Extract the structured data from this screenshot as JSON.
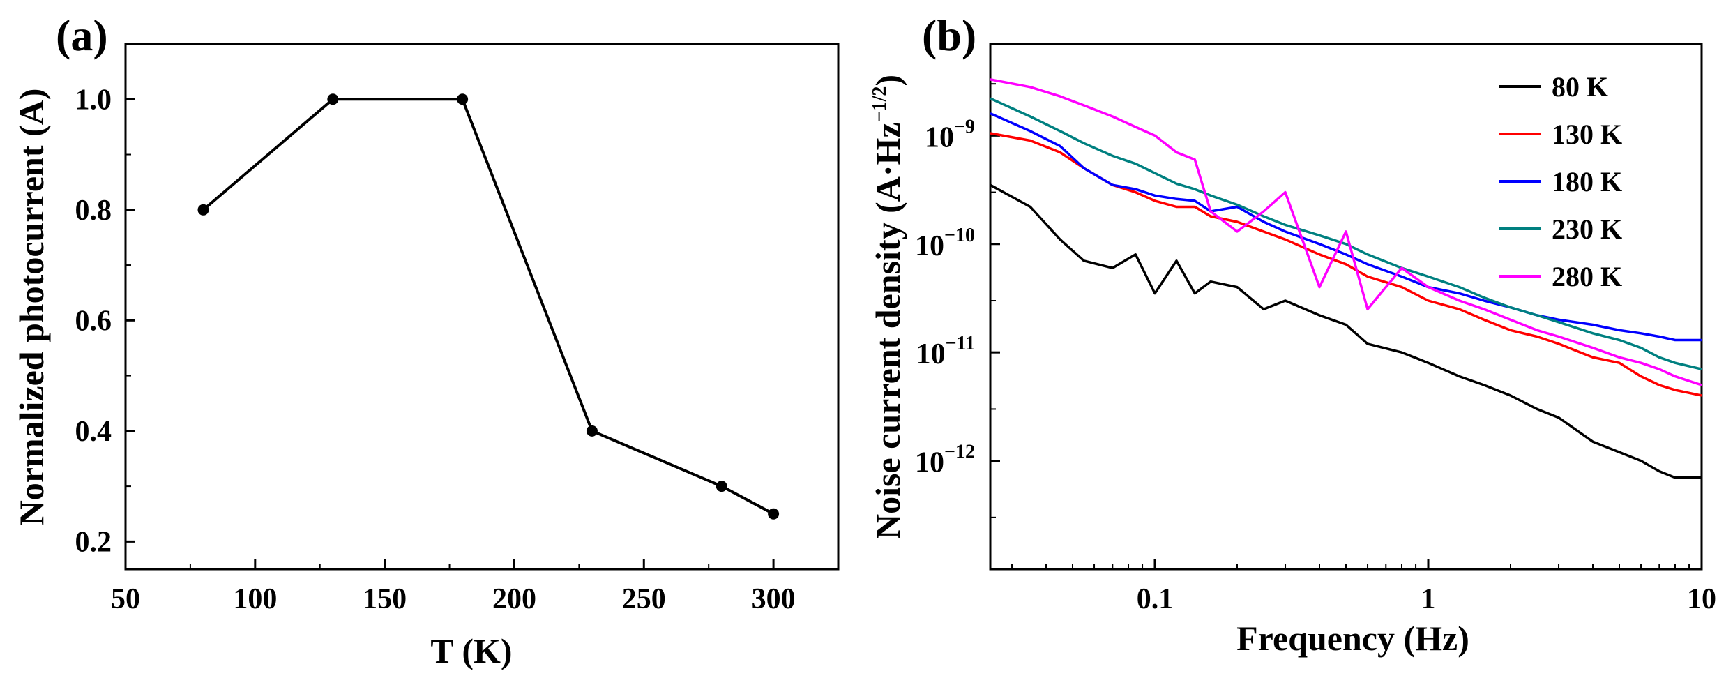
{
  "chart_data": [
    {
      "panel_label": "(a)",
      "type": "line",
      "xlabel": "T (K)",
      "ylabel": "Normalized photocurrent (A)",
      "x_ticks": [
        "50",
        "100",
        "150",
        "200",
        "250",
        "300"
      ],
      "y_ticks": [
        "0.2",
        "0.4",
        "0.6",
        "0.8",
        "1.0"
      ],
      "xlim": [
        50,
        325
      ],
      "ylim": [
        0.15,
        1.1
      ],
      "grid": false,
      "series": [
        {
          "x": [
            80,
            130,
            180,
            230,
            280,
            300
          ],
          "y": [
            0.8,
            1.0,
            1.0,
            0.4,
            0.3,
            0.25
          ]
        }
      ]
    },
    {
      "panel_label": "(b)",
      "type": "line",
      "xlabel": "Frequency (Hz)",
      "ylabel_main": "Noise current density (A·Hz",
      "ylabel_sup": "−1/2",
      "ylabel_close": ")",
      "x_scale": "log",
      "y_scale": "log",
      "x_ticks": [
        "0.1",
        "1",
        "10"
      ],
      "y_ticks": [
        {
          "base": "10",
          "exp": "−9"
        },
        {
          "base": "10",
          "exp": "−10"
        },
        {
          "base": "10",
          "exp": "−11"
        },
        {
          "base": "10",
          "exp": "−12"
        }
      ],
      "xlim": [
        0.025,
        10
      ],
      "ylim": [
        1e-13,
        7e-09
      ],
      "grid": false,
      "legend_position": "top-right",
      "series": [
        {
          "name": "80 K",
          "color": "#000000",
          "x": [
            0.025,
            0.035,
            0.045,
            0.055,
            0.07,
            0.085,
            0.1,
            0.12,
            0.14,
            0.16,
            0.2,
            0.25,
            0.3,
            0.4,
            0.5,
            0.6,
            0.8,
            1.0,
            1.3,
            1.6,
            2.0,
            2.5,
            3.0,
            4.0,
            5.0,
            6.0,
            7.0,
            8.0,
            10.0
          ],
          "y": [
            3.5e-10,
            2.2e-10,
            1.1e-10,
            7e-11,
            6e-11,
            8e-11,
            3.5e-11,
            7e-11,
            3.5e-11,
            4.5e-11,
            4e-11,
            2.5e-11,
            3e-11,
            2.2e-11,
            1.8e-11,
            1.2e-11,
            1e-11,
            8e-12,
            6e-12,
            5e-12,
            4e-12,
            3e-12,
            2.5e-12,
            1.5e-12,
            1.2e-12,
            1e-12,
            8e-13,
            7e-13,
            7e-13
          ]
        },
        {
          "name": "130 K",
          "color": "#ff0000",
          "x": [
            0.025,
            0.035,
            0.045,
            0.055,
            0.07,
            0.085,
            0.1,
            0.12,
            0.14,
            0.16,
            0.2,
            0.25,
            0.3,
            0.4,
            0.5,
            0.6,
            0.8,
            1.0,
            1.3,
            1.6,
            2.0,
            2.5,
            3.0,
            4.0,
            5.0,
            6.0,
            7.0,
            8.0,
            10.0
          ],
          "y": [
            1.05e-09,
            9e-10,
            7e-10,
            5e-10,
            3.5e-10,
            3e-10,
            2.5e-10,
            2.2e-10,
            2.2e-10,
            1.8e-10,
            1.6e-10,
            1.3e-10,
            1.1e-10,
            8e-11,
            6.5e-11,
            5e-11,
            4e-11,
            3e-11,
            2.5e-11,
            2e-11,
            1.6e-11,
            1.4e-11,
            1.2e-11,
            9e-12,
            8e-12,
            6e-12,
            5e-12,
            4.5e-12,
            4e-12
          ]
        },
        {
          "name": "180 K",
          "color": "#0000ff",
          "x": [
            0.025,
            0.035,
            0.045,
            0.055,
            0.07,
            0.085,
            0.1,
            0.12,
            0.14,
            0.16,
            0.2,
            0.25,
            0.3,
            0.4,
            0.5,
            0.6,
            0.8,
            1.0,
            1.3,
            1.6,
            2.0,
            2.5,
            3.0,
            4.0,
            5.0,
            6.0,
            7.0,
            8.0,
            10.0
          ],
          "y": [
            1.6e-09,
            1.1e-09,
            8e-10,
            5e-10,
            3.5e-10,
            3.2e-10,
            2.8e-10,
            2.6e-10,
            2.5e-10,
            2e-10,
            2.2e-10,
            1.6e-10,
            1.3e-10,
            1e-10,
            8e-11,
            6.5e-11,
            5e-11,
            4e-11,
            3.5e-11,
            3e-11,
            2.6e-11,
            2.2e-11,
            2e-11,
            1.8e-11,
            1.6e-11,
            1.5e-11,
            1.4e-11,
            1.3e-11,
            1.3e-11
          ]
        },
        {
          "name": "230 K",
          "color": "#008080",
          "x": [
            0.025,
            0.035,
            0.045,
            0.055,
            0.07,
            0.085,
            0.1,
            0.12,
            0.14,
            0.16,
            0.2,
            0.25,
            0.3,
            0.4,
            0.5,
            0.6,
            0.8,
            1.0,
            1.3,
            1.6,
            2.0,
            2.5,
            3.0,
            4.0,
            5.0,
            6.0,
            7.0,
            8.0,
            10.0
          ],
          "y": [
            2.2e-09,
            1.5e-09,
            1.1e-09,
            8.5e-10,
            6.5e-10,
            5.5e-10,
            4.5e-10,
            3.6e-10,
            3.2e-10,
            2.8e-10,
            2.3e-10,
            1.8e-10,
            1.5e-10,
            1.2e-10,
            1e-10,
            8e-11,
            6e-11,
            5e-11,
            4e-11,
            3.2e-11,
            2.6e-11,
            2.2e-11,
            1.9e-11,
            1.5e-11,
            1.3e-11,
            1.1e-11,
            9e-12,
            8e-12,
            7e-12
          ]
        },
        {
          "name": "280 K",
          "color": "#ff00ff",
          "x": [
            0.025,
            0.035,
            0.045,
            0.055,
            0.07,
            0.085,
            0.1,
            0.12,
            0.14,
            0.16,
            0.2,
            0.25,
            0.3,
            0.4,
            0.5,
            0.6,
            0.8,
            1.0,
            1.3,
            1.6,
            2.0,
            2.5,
            3.0,
            4.0,
            5.0,
            6.0,
            7.0,
            8.0,
            10.0
          ],
          "y": [
            3.3e-09,
            2.8e-09,
            2.3e-09,
            1.9e-09,
            1.5e-09,
            1.2e-09,
            1e-09,
            7e-10,
            6e-10,
            2e-10,
            1.3e-10,
            2e-10,
            3e-10,
            4e-11,
            1.3e-10,
            2.5e-11,
            6e-11,
            4e-11,
            3e-11,
            2.5e-11,
            2e-11,
            1.6e-11,
            1.4e-11,
            1.1e-11,
            9e-12,
            8e-12,
            7e-12,
            6e-12,
            5e-12
          ]
        }
      ]
    }
  ]
}
